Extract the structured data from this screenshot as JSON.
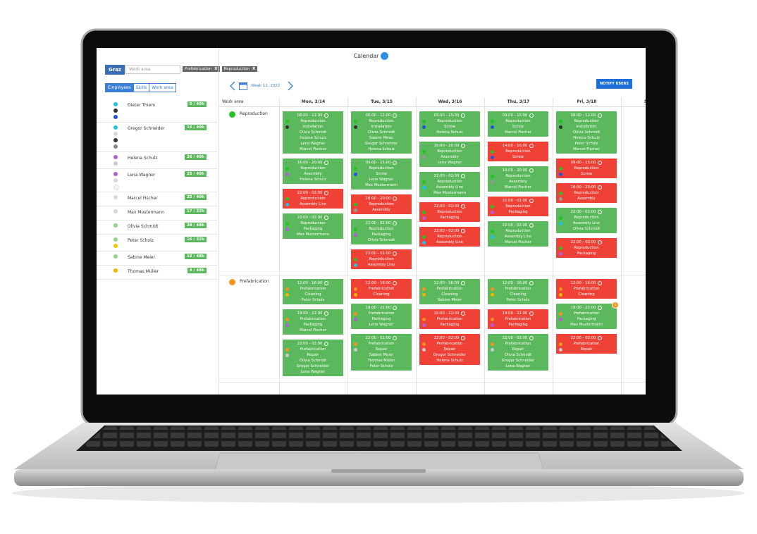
{
  "header": {
    "title": "Calendar",
    "location": "Graz",
    "search_placeholder": "Work area",
    "filters": [
      {
        "label": "Prefabrication",
        "remove": "X"
      },
      {
        "label": "Reproduction",
        "remove": "X"
      }
    ],
    "notify": "NOTIFY USERS"
  },
  "tabs": [
    "Employees",
    "Skills",
    "Work area"
  ],
  "week": "Week 11, 2022",
  "employees": [
    {
      "name": "Dieter Thiem",
      "hours": "0 / 40h",
      "dots": [
        "#1fc3e8",
        "#333333",
        "#2255dd"
      ]
    },
    {
      "name": "Gregor Schneider",
      "hours": "16 / 40h",
      "dots": [
        "#1fc3e8",
        "#d8d8d8",
        "#333333",
        "#888888"
      ]
    },
    {
      "name": "Helena Schulz",
      "hours": "26 / 40h",
      "dots": [
        "#b05fd6",
        "#cccccc"
      ]
    },
    {
      "name": "Lena Wagner",
      "hours": "25 / 40h",
      "dots": [
        "#b05fd6",
        "#d8d8d8",
        "#f4f4f4"
      ]
    },
    {
      "name": "Marcel Fischer",
      "hours": "25 / 40h",
      "dots": [
        "#d8d8d8"
      ]
    },
    {
      "name": "Max Mustermann",
      "hours": "17 / 32h",
      "dots": [
        "#d8d8d8"
      ]
    },
    {
      "name": "Olivia Schmidt",
      "hours": "28 / 48h",
      "dots": [
        "#8fd88a"
      ]
    },
    {
      "name": "Peter Scholz",
      "hours": "16 / 32h",
      "dots": [
        "#8fd88a",
        "#f5c400"
      ]
    },
    {
      "name": "Sabine Meier",
      "hours": "12 / 48h",
      "dots": [
        "#8fd88a"
      ]
    },
    {
      "name": "Thomas Müller",
      "hours": "4 / 48h",
      "dots": [
        "#f5b400"
      ]
    }
  ],
  "calendar": {
    "area_header": "Work area",
    "days": [
      "Mon, 3/14",
      "Tue, 3/15",
      "Wed, 3/16",
      "Thu, 3/17",
      "Fri, 3/18",
      "S"
    ],
    "areas": [
      {
        "name": "Reproduction",
        "color": "#22c322",
        "days": [
          [
            {
              "time": "08:00 - 12:00",
              "area": "Reproduction",
              "skill": "Installation",
              "people": [
                "Olivia Schmidt",
                "Helena Schulz",
                "Lena Wagner",
                "Marcel Fischer"
              ],
              "color": "#5cb85c",
              "dots": [
                "#22c322",
                "#333333"
              ]
            },
            {
              "time": "16:00 - 20:00",
              "area": "Reproduction",
              "skill": "Assembly",
              "people": [
                "Helena Schulz"
              ],
              "color": "#5cb85c",
              "dots": [
                "#22c322",
                "#b05fd6"
              ]
            },
            {
              "time": "22:00 - 02:00",
              "area": "Reproduction",
              "skill": "Assembly Line",
              "people": [],
              "color": "#ef4136",
              "dots": [
                "#22c322",
                "#1fc3e8"
              ]
            },
            {
              "time": "22:00 - 02:00",
              "area": "Reproduction",
              "skill": "Packaging",
              "people": [
                "Max Mustermann"
              ],
              "color": "#5cb85c",
              "dots": [
                "#22c322",
                "#b05fd6"
              ]
            }
          ],
          [
            {
              "time": "08:00 - 12:00",
              "area": "Reproduction",
              "skill": "Installation",
              "people": [
                "Olivia Schmidt",
                "Sabine Meier",
                "Gregor Schneider",
                "Helena Schulz"
              ],
              "color": "#5cb85c",
              "dots": [
                "#22c322",
                "#333333"
              ]
            },
            {
              "time": "09:00 - 15:00",
              "area": "Reproduction",
              "skill": "Screw",
              "people": [
                "Lena Wagner",
                "Max Mustermann"
              ],
              "color": "#5cb85c",
              "dots": [
                "#22c322",
                "#2255dd"
              ]
            },
            {
              "time": "16:00 - 20:00",
              "area": "Reproduction",
              "skill": "Assembly",
              "people": [],
              "color": "#ef4136",
              "dots": [
                "#22c322",
                "#999999"
              ]
            },
            {
              "time": "22:00 - 02:00",
              "area": "Reproduction",
              "skill": "Packaging",
              "people": [
                "Olivia Schmidt"
              ],
              "color": "#5cb85c",
              "dots": [
                "#22c322",
                "#b05fd6"
              ]
            },
            {
              "time": "22:00 - 02:00",
              "area": "Reproduction",
              "skill": "Assembly Line",
              "people": [],
              "color": "#ef4136",
              "dots": [
                "#22c322",
                "#1fc3e8"
              ]
            }
          ],
          [
            {
              "time": "09:00 - 15:00",
              "area": "Reproduction",
              "skill": "Screw",
              "people": [
                "Helena Schulz"
              ],
              "color": "#5cb85c",
              "dots": [
                "#22c322",
                "#2255dd"
              ]
            },
            {
              "time": "16:00 - 20:00",
              "area": "Reproduction",
              "skill": "Assembly",
              "people": [
                "Lena Wagner"
              ],
              "color": "#5cb85c",
              "dots": [
                "#22c322",
                "#999999"
              ]
            },
            {
              "time": "22:00 - 02:00",
              "area": "Reproduction",
              "skill": "Assembly Line",
              "people": [
                "Max Mustermann"
              ],
              "color": "#5cb85c",
              "dots": [
                "#22c322",
                "#1fc3e8"
              ]
            },
            {
              "time": "22:00 - 02:00",
              "area": "Reproduction",
              "skill": "Packaging",
              "people": [],
              "color": "#ef4136",
              "dots": [
                "#22c322",
                "#b05fd6"
              ]
            },
            {
              "time": "22:00 - 02:00",
              "area": "Reproduction",
              "skill": "Assembly Line",
              "people": [],
              "color": "#ef4136",
              "dots": [
                "#22c322",
                "#1fc3e8"
              ]
            }
          ],
          [
            {
              "time": "09:00 - 15:00",
              "area": "Reproduction",
              "skill": "Screw",
              "people": [
                "Marcel Fischer"
              ],
              "color": "#5cb85c",
              "dots": [
                "#22c322",
                "#2255dd"
              ]
            },
            {
              "time": "14:00 - 16:00",
              "area": "Reproduction",
              "skill": "Screw",
              "people": [],
              "color": "#ef4136",
              "dots": [
                "#22c322",
                "#2255dd"
              ]
            },
            {
              "time": "16:00 - 20:00",
              "area": "Reproduction",
              "skill": "Assembly",
              "people": [
                "Marcel Fischer"
              ],
              "color": "#5cb85c",
              "dots": [
                "#22c322",
                "#999999"
              ]
            },
            {
              "time": "22:00 - 02:00",
              "area": "Reproduction",
              "skill": "Packaging",
              "people": [],
              "color": "#ef4136",
              "dots": [
                "#22c322",
                "#b05fd6"
              ]
            },
            {
              "time": "22:00 - 02:00",
              "area": "Reproduction",
              "skill": "Assembly Line",
              "people": [
                "Marcel Fischer"
              ],
              "color": "#5cb85c",
              "dots": [
                "#22c322",
                "#1fc3e8"
              ]
            }
          ],
          [
            {
              "time": "08:00 - 12:00",
              "area": "Reproduction",
              "skill": "Installation",
              "people": [
                "Olivia Schmidt",
                "Helena Schulz",
                "Peter Scholz",
                "Marcel Fischer"
              ],
              "color": "#5cb85c",
              "dots": [
                "#22c322",
                "#333333"
              ]
            },
            {
              "time": "09:00 - 15:00",
              "area": "Reproduction",
              "skill": "Screw",
              "people": [],
              "color": "#ef4136",
              "dots": [
                "#22c322",
                "#2255dd"
              ]
            },
            {
              "time": "16:00 - 20:00",
              "area": "Reproduction",
              "skill": "Assembly",
              "people": [],
              "color": "#ef4136",
              "dots": [
                "#22c322",
                "#999999"
              ]
            },
            {
              "time": "22:00 - 02:00",
              "area": "Reproduction",
              "skill": "Assembly Line",
              "people": [
                "Olivia Schmidt"
              ],
              "color": "#5cb85c",
              "dots": [
                "#22c322",
                "#1fc3e8"
              ]
            },
            {
              "time": "22:00 - 02:00",
              "area": "Reproduction",
              "skill": "Packaging",
              "people": [],
              "color": "#ef4136",
              "dots": [
                "#22c322",
                "#b05fd6"
              ]
            }
          ],
          []
        ]
      },
      {
        "name": "Prefabrication",
        "color": "#f7941d",
        "days": [
          [
            {
              "time": "12:00 - 16:00",
              "area": "Prefabrication",
              "skill": "Cleaning",
              "people": [
                "Peter Scholz"
              ],
              "color": "#5cb85c",
              "dots": [
                "#f7941d",
                "#f5b400"
              ]
            },
            {
              "time": "19:00 - 22:00",
              "area": "Prefabrication",
              "skill": "Packaging",
              "people": [
                "Marcel Fischer"
              ],
              "color": "#5cb85c",
              "dots": [
                "#f7941d",
                "#b05fd6"
              ]
            },
            {
              "time": "22:00 - 02:00",
              "area": "Prefabrication",
              "skill": "Repair",
              "people": [
                "Olivia Schmidt",
                "Gregor Schneider",
                "Lena Wagner"
              ],
              "color": "#5cb85c",
              "dots": [
                "#f7941d",
                "#cccccc"
              ]
            }
          ],
          [
            {
              "time": "12:00 - 16:00",
              "area": "Prefabrication",
              "skill": "Cleaning",
              "people": [],
              "color": "#ef4136",
              "dots": [
                "#f7941d",
                "#f5b400"
              ]
            },
            {
              "time": "19:00 - 22:00",
              "area": "Prefabrication",
              "skill": "Packaging",
              "people": [
                "Lena Wagner"
              ],
              "color": "#5cb85c",
              "dots": [
                "#f7941d",
                "#b05fd6"
              ]
            },
            {
              "time": "22:00 - 02:00",
              "area": "Prefabrication",
              "skill": "Repair",
              "people": [
                "Sabine Meier",
                "Thomas Müller",
                "Peter Scholz"
              ],
              "color": "#5cb85c",
              "dots": [
                "#f7941d",
                "#cccccc"
              ]
            }
          ],
          [
            {
              "time": "12:00 - 16:00",
              "area": "Prefabrication",
              "skill": "Cleaning",
              "people": [
                "Sabine Meier"
              ],
              "color": "#5cb85c",
              "dots": [
                "#f7941d",
                "#f5b400"
              ]
            },
            {
              "time": "19:00 - 22:00",
              "area": "Prefabrication",
              "skill": "Packaging",
              "people": [],
              "color": "#ef4136",
              "dots": [
                "#f7941d",
                "#b05fd6"
              ]
            },
            {
              "time": "22:00 - 02:00",
              "area": "Prefabrication",
              "skill": "Repair",
              "people": [
                "Gregor Schneider",
                "Helena Schulz"
              ],
              "color": "#ef4136",
              "dots": [
                "#f7941d",
                "#cccccc"
              ]
            }
          ],
          [
            {
              "time": "12:00 - 16:00",
              "area": "Prefabrication",
              "skill": "Cleaning",
              "people": [
                "Peter Scholz"
              ],
              "color": "#5cb85c",
              "dots": [
                "#f7941d",
                "#f5b400"
              ]
            },
            {
              "time": "19:00 - 22:00",
              "area": "Prefabrication",
              "skill": "Packaging",
              "people": [],
              "color": "#ef4136",
              "dots": [
                "#f7941d",
                "#b05fd6"
              ]
            },
            {
              "time": "22:00 - 02:00",
              "area": "Prefabrication",
              "skill": "Repair",
              "people": [
                "Olivia Schmidt",
                "Gregor Schneider",
                "Lena Wagner"
              ],
              "color": "#5cb85c",
              "dots": [
                "#f7941d",
                "#cccccc"
              ]
            }
          ],
          [
            {
              "time": "12:00 - 16:00",
              "area": "Prefabrication",
              "skill": "Cleaning",
              "people": [],
              "color": "#ef4136",
              "dots": [
                "#f7941d",
                "#f5b400"
              ]
            },
            {
              "time": "19:00 - 22:00",
              "area": "Prefabrication",
              "skill": "Packaging",
              "people": [
                "Max Mustermann"
              ],
              "color": "#5cb85c",
              "dots": [
                "#f7941d",
                "#b05fd6"
              ],
              "badge": "1"
            },
            {
              "time": "22:00 - 02:00",
              "area": "Prefabrication",
              "skill": "Repair",
              "people": [],
              "color": "#ef4136",
              "dots": [
                "#f7941d",
                "#cccccc"
              ]
            }
          ],
          []
        ]
      }
    ]
  }
}
